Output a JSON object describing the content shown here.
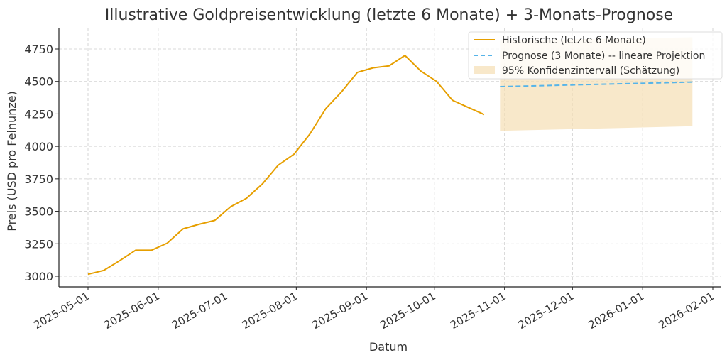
{
  "chart_data": {
    "type": "line",
    "title": "Illustrative Goldpreisentwicklung (letzte 6 Monate) + 3-Monats-Prognose",
    "xlabel": "Datum",
    "ylabel": "Preis (USD pro Feinunze)",
    "ylim": [
      2930,
      4880
    ],
    "yticks": [
      3000,
      3250,
      3500,
      3750,
      4000,
      4250,
      4500,
      4750
    ],
    "xticks": [
      "2025-05-01",
      "2025-06-01",
      "2025-07-01",
      "2025-08-01",
      "2025-09-01",
      "2025-10-01",
      "2025-11-01",
      "2025-12-01",
      "2026-01-01",
      "2026-02-01"
    ],
    "grid": true,
    "legend_position": "upper right",
    "series": [
      {
        "name": "Historische (letzte 6 Monate)",
        "style": "solid",
        "color": "#E69F00",
        "x": [
          "2025-05-01",
          "2025-05-08",
          "2025-05-15",
          "2025-05-22",
          "2025-05-29",
          "2025-06-05",
          "2025-06-12",
          "2025-06-19",
          "2025-06-26",
          "2025-07-03",
          "2025-07-10",
          "2025-07-17",
          "2025-07-24",
          "2025-07-31",
          "2025-08-07",
          "2025-08-14",
          "2025-08-21",
          "2025-08-28",
          "2025-09-04",
          "2025-09-11",
          "2025-09-18",
          "2025-09-25",
          "2025-10-02",
          "2025-10-09",
          "2025-10-16",
          "2025-10-23"
        ],
        "values": [
          3015,
          3045,
          3120,
          3200,
          3200,
          3255,
          3365,
          3400,
          3430,
          3535,
          3600,
          3710,
          3855,
          3940,
          4095,
          4290,
          4420,
          4570,
          4605,
          4620,
          4700,
          4580,
          4500,
          4355,
          4300,
          4245
        ]
      },
      {
        "name": "Prognose (3 Monate) -- lineare Projektion",
        "style": "dashed",
        "color": "#56B4E9",
        "x": [
          "2025-10-30",
          "2026-01-23"
        ],
        "values": [
          4460,
          4495
        ]
      }
    ],
    "bands": [
      {
        "name": "95% Konfidenzintervall (Schätzung)",
        "color": "#F5DEB3",
        "x": [
          "2025-10-30",
          "2026-01-23"
        ],
        "lower": [
          4120,
          4155
        ],
        "upper": [
          4815,
          4840
        ]
      }
    ]
  },
  "legend": {
    "items": [
      {
        "label": "Historische (letzte 6 Monate)"
      },
      {
        "label": "Prognose (3 Monate) -- lineare Projektion"
      },
      {
        "label": "95% Konfidenzintervall (Schätzung)"
      }
    ]
  }
}
